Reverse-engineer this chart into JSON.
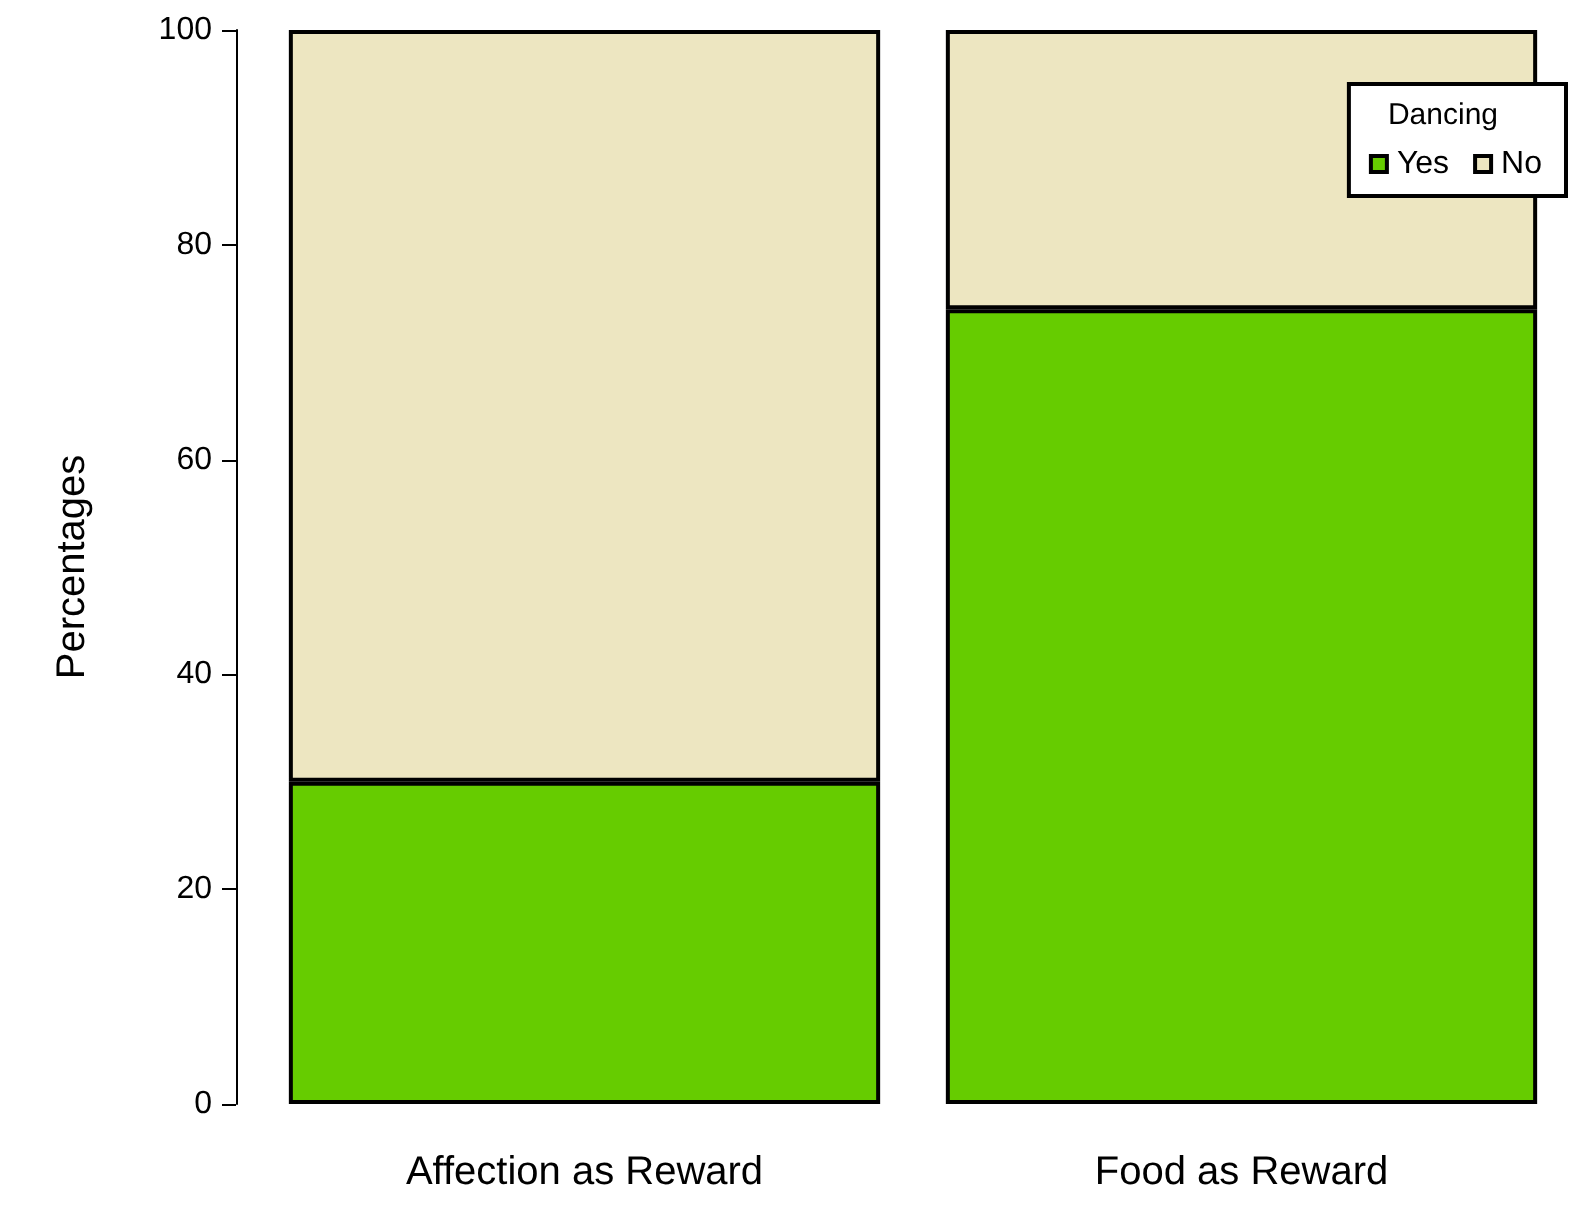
{
  "chart_data": {
    "type": "bar",
    "stacked": true,
    "ylabel": "Percentages",
    "legend_title": "Dancing",
    "categories": [
      "Affection as Reward",
      "Food as Reward"
    ],
    "series": [
      {
        "name": "Yes",
        "color": "#66cc00",
        "values": [
          30,
          74
        ]
      },
      {
        "name": "No",
        "color": "#ede6c1",
        "values": [
          70,
          26
        ]
      }
    ],
    "ylim": [
      0,
      100
    ],
    "yticks": [
      0,
      20,
      40,
      60,
      80,
      100
    ],
    "grid": false,
    "legend": "top right"
  }
}
